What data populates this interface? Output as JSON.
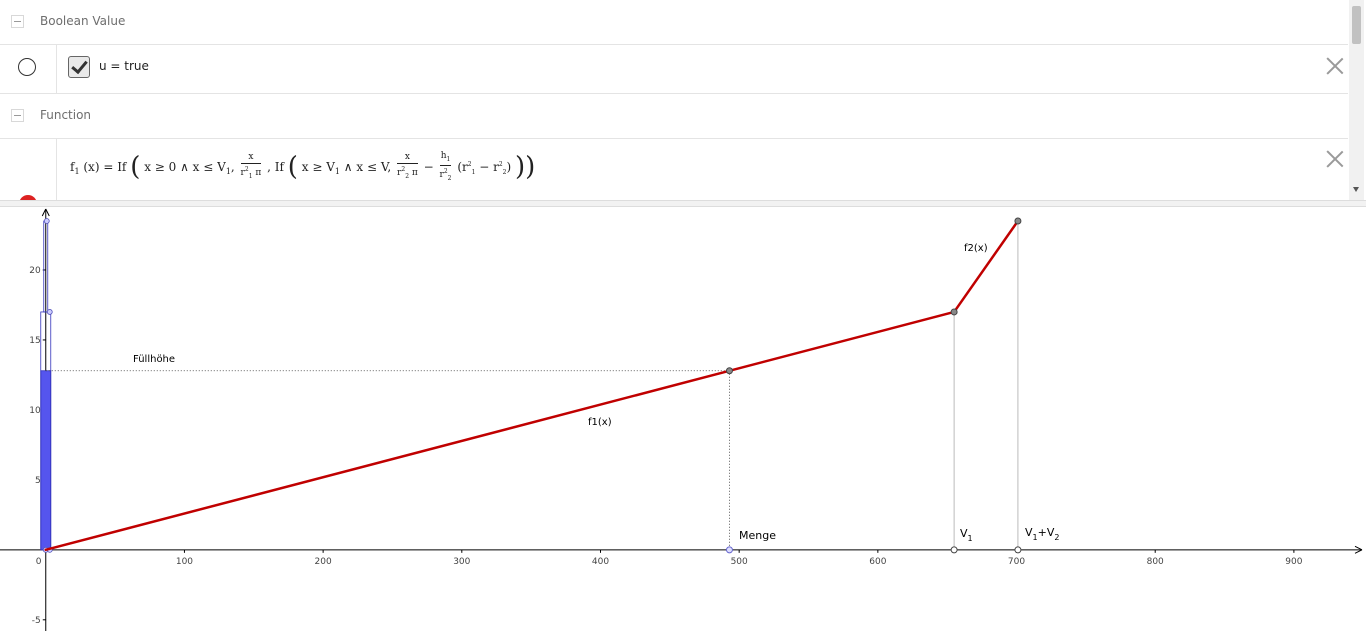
{
  "algebra": {
    "groups": [
      {
        "label": "Boolean Value"
      },
      {
        "label": "Function"
      }
    ],
    "boolean_item": {
      "text": "u = true",
      "checked": true
    },
    "function_item": {
      "lhs": "f",
      "lhs_sub": "1",
      "lhs_arg": "(x) = If",
      "cond1": "x ≥ 0 ∧ x ≤ V",
      "cond1_sub": "1",
      "expr1_num": "x",
      "expr1_den": "r",
      "expr1_den_sup": "2",
      "expr1_den_sub": "1",
      "expr1_den_tail": " π",
      "if2": ", If",
      "cond2a": "x ≥ V",
      "cond2a_sub": "1",
      "cond2b": " ∧ x ≤ V,",
      "expr2_num": "x",
      "expr2_den": "r",
      "expr2_den_sup": "2",
      "expr2_den_sub": "2",
      "expr2_den_tail": " π",
      "minus": "−",
      "expr3_num": "h",
      "expr3_num_sub": "1",
      "expr3_den": "r",
      "expr3_den_sup": "2",
      "expr3_den_sub": "2",
      "paren_open": "(r",
      "paren_sup1": "2",
      "paren_sub1": "1",
      "paren_mid": " − r",
      "paren_sup2": "2",
      "paren_sub2": "2",
      "paren_close": ")"
    }
  },
  "colors": {
    "function": "#c00000",
    "container_fill": "#5555ee",
    "point_outline": "#444444",
    "axis": "#000000"
  },
  "graph": {
    "labels": {
      "fuellhoehe": "Füllhöhe",
      "f1": "f1(x)",
      "f2": "f2(x)",
      "menge": "Menge",
      "v1": "V",
      "v1_sub": "1",
      "v1v2_a": "V",
      "v1v2_sub1": "1",
      "v1v2_b": "+V",
      "v1v2_sub2": "2"
    }
  },
  "chart_data": {
    "type": "line",
    "x_ticks": [
      0,
      100,
      200,
      300,
      400,
      500,
      600,
      700,
      800,
      900
    ],
    "y_ticks": [
      -5,
      5,
      10,
      15,
      20
    ],
    "xlim": [
      -33,
      952
    ],
    "ylim": [
      -5.8,
      24.5
    ],
    "grid": false,
    "series": [
      {
        "name": "f1(x)",
        "x": [
          0,
          655
        ],
        "y": [
          0,
          17
        ]
      },
      {
        "name": "f2(x)",
        "x": [
          655,
          701
        ],
        "y": [
          17,
          23.5
        ]
      }
    ],
    "points": {
      "menge": {
        "x": 493,
        "y": 12.8
      },
      "v1": {
        "x": 655,
        "y": 17
      },
      "v1v2": {
        "x": 701,
        "y": 23.5
      }
    },
    "container": {
      "lower_top": 17,
      "upper_top": 23.5,
      "fill_level": 12.8
    }
  }
}
